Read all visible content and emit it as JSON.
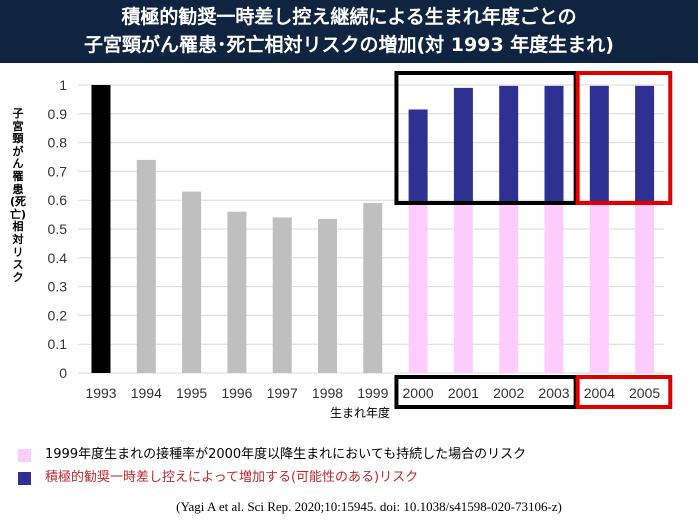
{
  "title": {
    "line1": "積極的勧奨一時差し控え継続による生まれ年度ごとの",
    "line2": "子宮頸がん罹患･死亡相対リスクの増加(対 1993 年度生まれ)"
  },
  "legend": [
    {
      "label": "1999年度生まれの接種率が2000年度以降生まれにおいても持続した場合のリスク",
      "color": "#ffccff"
    },
    {
      "label": "積極的勧奨一時差し控えによって増加する(可能性のある)リスク",
      "color": "#2e3192"
    }
  ],
  "citation": "(Yagi A et al. Sci Rep. 2020;10:15945. doi: 10.1038/s41598-020-73106-z)",
  "chart_data": {
    "type": "bar",
    "xlabel": "生まれ年度",
    "ylabel": "子宮頸がん罹患(死亡)相対リスク",
    "ylim": [
      0,
      1
    ],
    "yticks": [
      "0",
      "0.1",
      "0.2",
      "0.3",
      "0.4",
      "0.5",
      "0.6",
      "0.7",
      "0.8",
      "0.9",
      "1"
    ],
    "grid": true,
    "categories": [
      "1993",
      "1994",
      "1995",
      "1996",
      "1997",
      "1998",
      "1999",
      "2000",
      "2001",
      "2002",
      "2003",
      "2004",
      "2005"
    ],
    "values": [
      1.0,
      0.74,
      0.63,
      0.56,
      0.54,
      0.535,
      0.59,
      0.915,
      0.99,
      0.997,
      0.997,
      0.997,
      0.997
    ],
    "bar_colors": [
      "#000000",
      "#bfbfbf",
      "#bfbfbf",
      "#bfbfbf",
      "#bfbfbf",
      "#bfbfbf",
      "#bfbfbf",
      "#2e3192",
      "#2e3192",
      "#2e3192",
      "#2e3192",
      "#2e3192",
      "#2e3192"
    ],
    "baseline_series": {
      "value": 0.59,
      "color": "#ffccff",
      "categories": [
        "2000",
        "2001",
        "2002",
        "2003",
        "2004",
        "2005"
      ]
    },
    "highlight_groups": [
      {
        "categories": [
          "2000",
          "2001",
          "2002",
          "2003"
        ],
        "color": "#000000"
      },
      {
        "categories": [
          "2004",
          "2005"
        ],
        "color": "#e00000"
      }
    ]
  }
}
